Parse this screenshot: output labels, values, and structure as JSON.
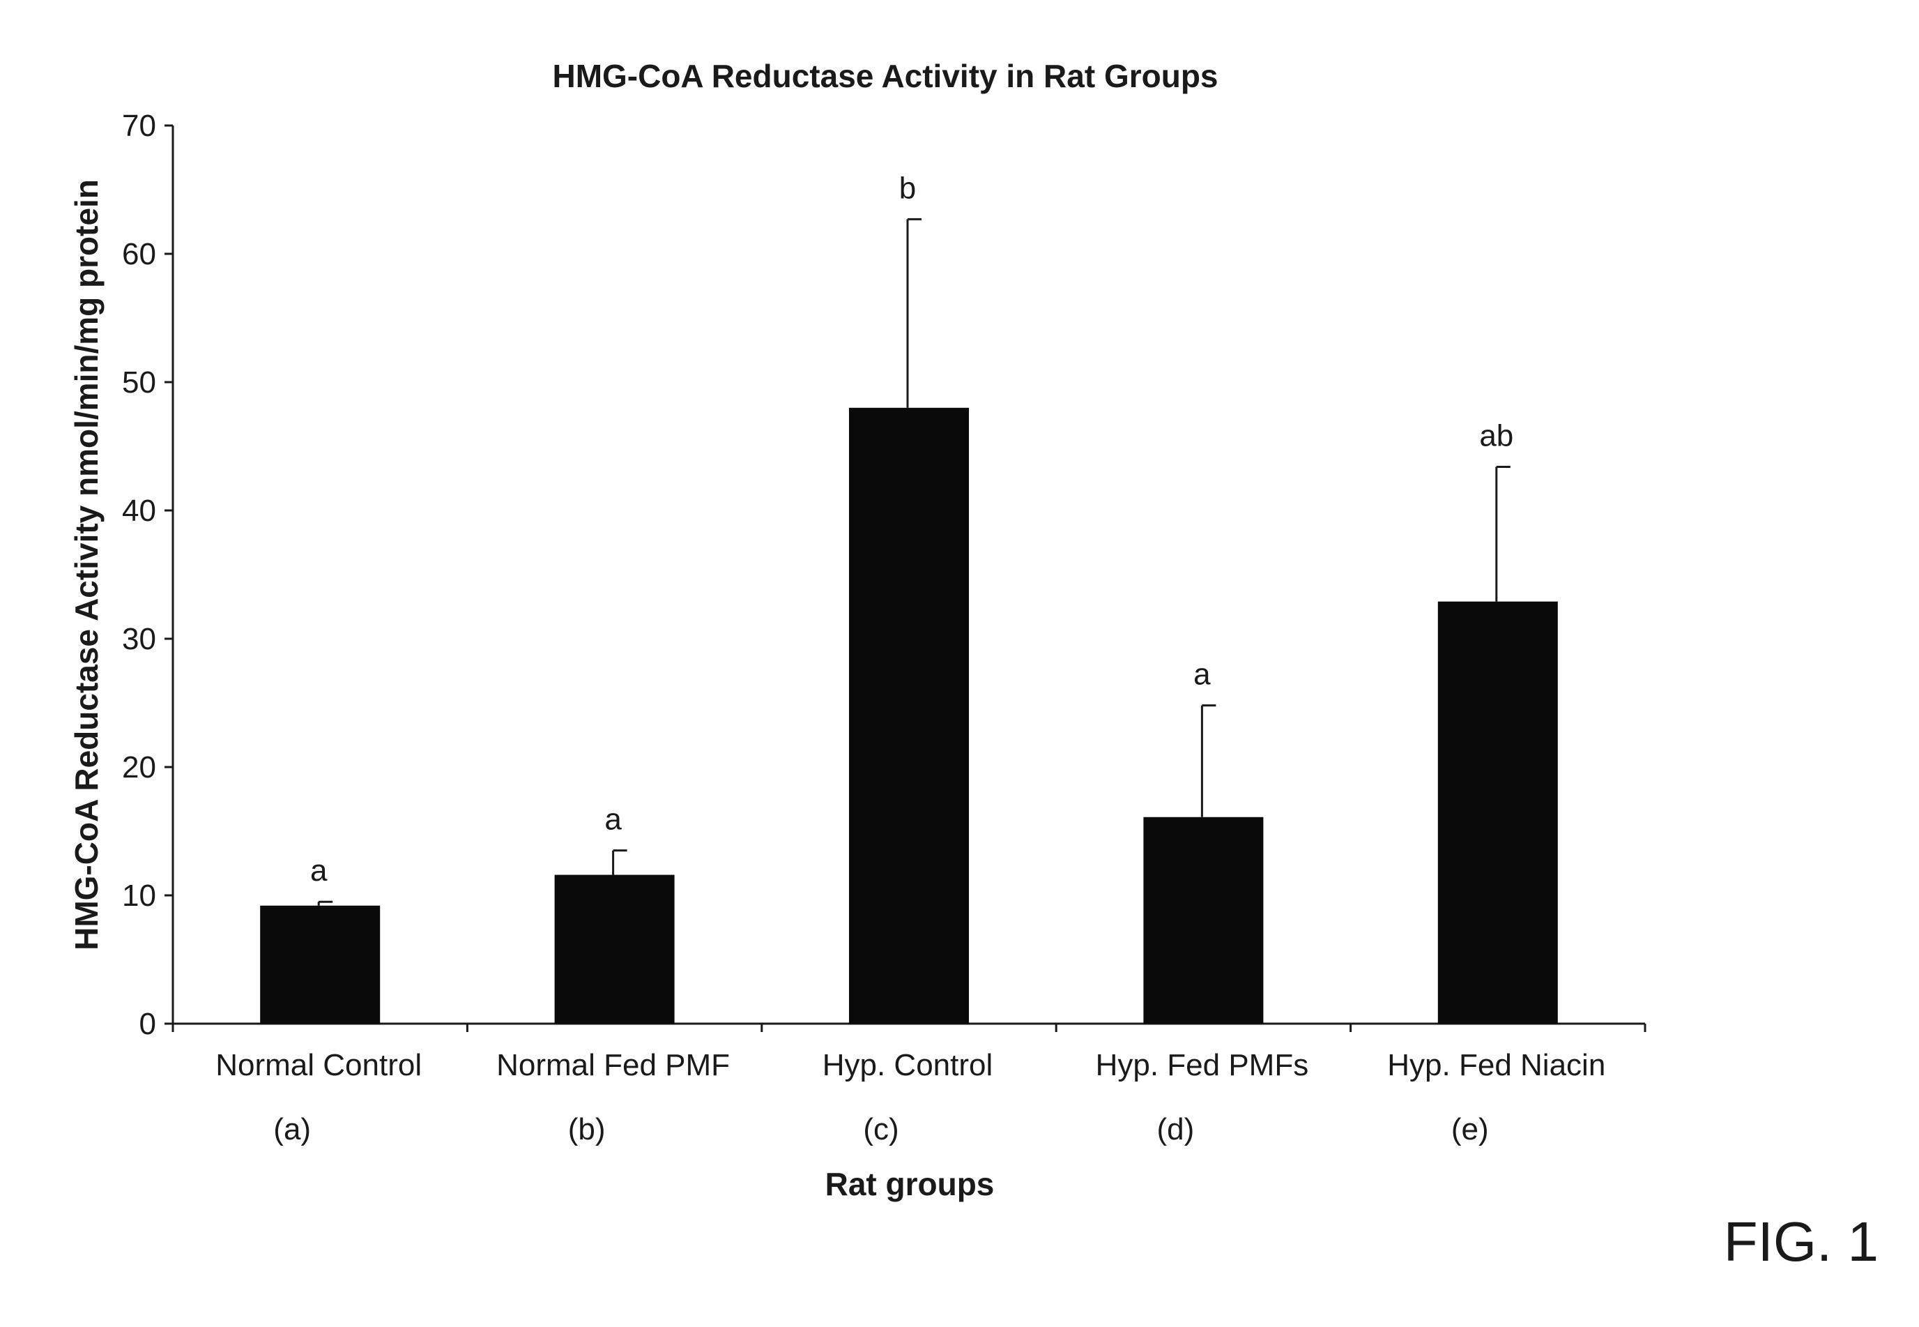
{
  "chart_data": {
    "type": "bar",
    "title": "HMG-CoA Reductase Activity in Rat Groups",
    "xlabel": "Rat groups",
    "ylabel": "HMG-CoA Reductase Activity nmol/min/mg protein",
    "ylim": [
      0,
      70
    ],
    "yticks": [
      0,
      10,
      20,
      30,
      40,
      50,
      60,
      70
    ],
    "categories": [
      "Normal Control",
      "Normal Fed PMF",
      "Hyp. Control",
      "Hyp. Fed PMFs",
      "Hyp. Fed Niacin"
    ],
    "category_codes": [
      "(a)",
      "(b)",
      "(c)",
      "(d)",
      "(e)"
    ],
    "values": [
      9.2,
      11.6,
      48.0,
      16.1,
      32.9
    ],
    "error_upper": [
      9.5,
      13.5,
      62.7,
      24.8,
      43.4
    ],
    "significance_labels": [
      "a",
      "a",
      "b",
      "a",
      "ab"
    ],
    "grid": false,
    "legend": "none",
    "bar_color": "#0a0a0a"
  },
  "figure_label": "FIG. 1"
}
